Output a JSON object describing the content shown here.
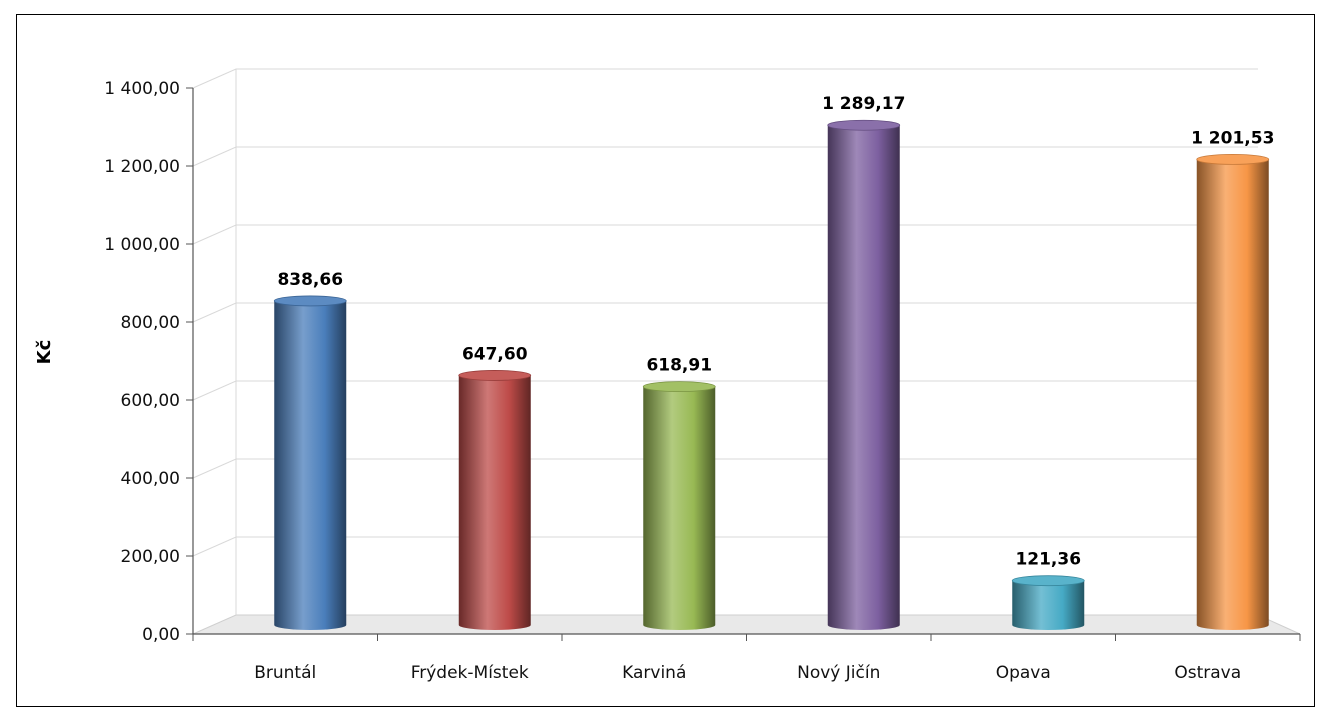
{
  "chart_data": {
    "type": "bar",
    "title": "",
    "xlabel": "",
    "ylabel": "Kč",
    "ylim": [
      0,
      1400
    ],
    "yticks": [
      "0,00",
      "200,00",
      "400,00",
      "600,00",
      "800,00",
      "1 000,00",
      "1 200,00",
      "1 400,00"
    ],
    "grid": true,
    "categories": [
      "Bruntál",
      "Frýdek-Místek",
      "Karviná",
      "Nový Jičín",
      "Opava",
      "Ostrava"
    ],
    "values": [
      838.66,
      647.6,
      618.91,
      1289.17,
      121.36,
      1201.53
    ],
    "data_labels": [
      "838,66",
      "647,60",
      "618,91",
      "1 289,17",
      "121,36",
      "1 201,53"
    ],
    "colors": [
      "#4A7EBB",
      "#BE4B48",
      "#98B954",
      "#7D60A0",
      "#46AAC5",
      "#F79646"
    ]
  }
}
